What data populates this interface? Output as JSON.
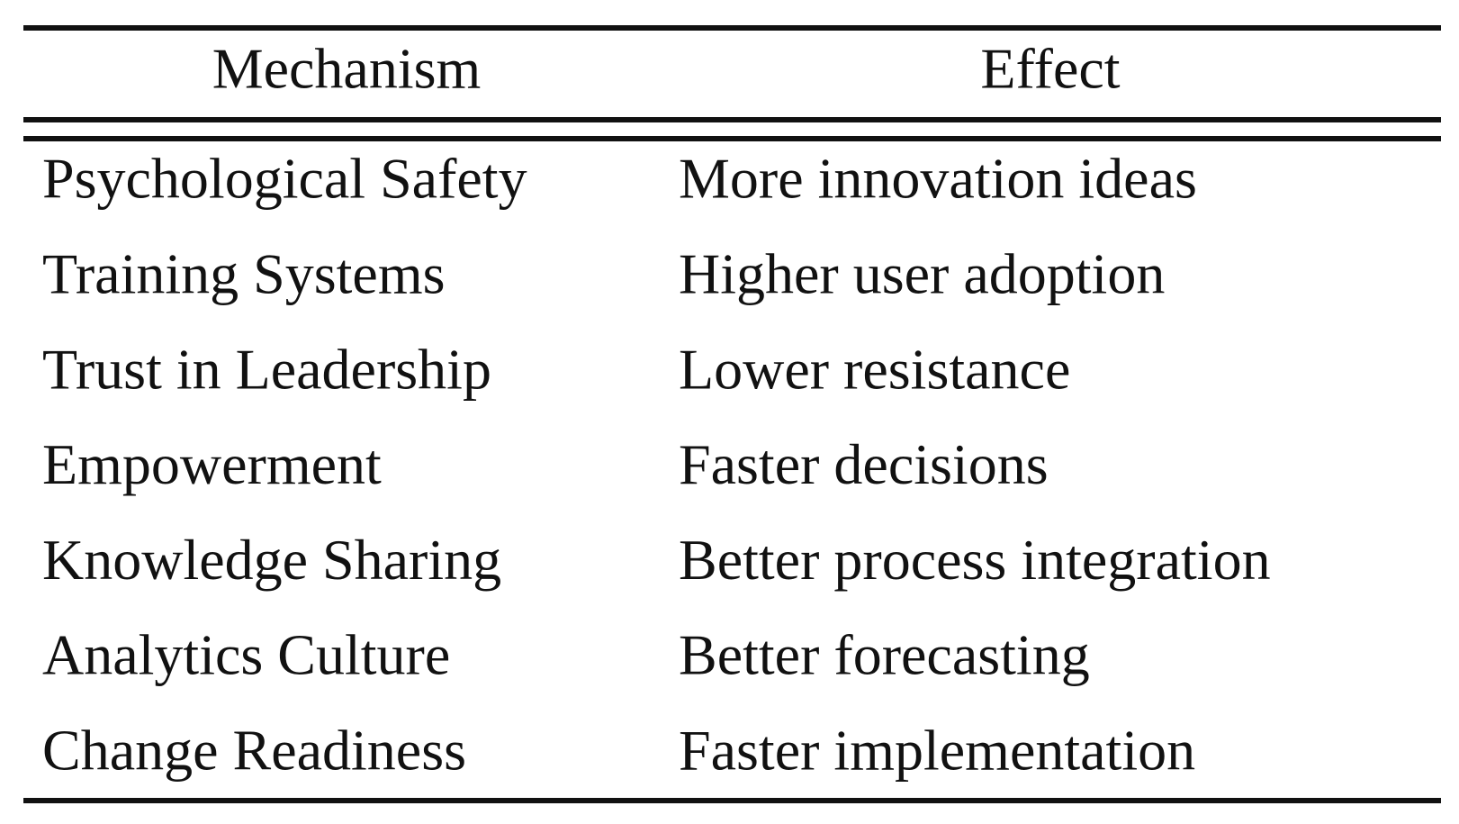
{
  "table": {
    "header": [
      "Mechanism",
      "Effect"
    ],
    "rows": [
      [
        "Psychological Safety",
        "More innovation ideas"
      ],
      [
        "Training Systems",
        "Higher user adoption"
      ],
      [
        "Trust in Leadership",
        "Lower resistance"
      ],
      [
        "Empowerment",
        "Faster decisions"
      ],
      [
        "Knowledge Sharing",
        "Better process integration"
      ],
      [
        "Analytics Culture",
        "Better forecasting"
      ],
      [
        "Change Readiness",
        "Faster implementation"
      ]
    ]
  }
}
